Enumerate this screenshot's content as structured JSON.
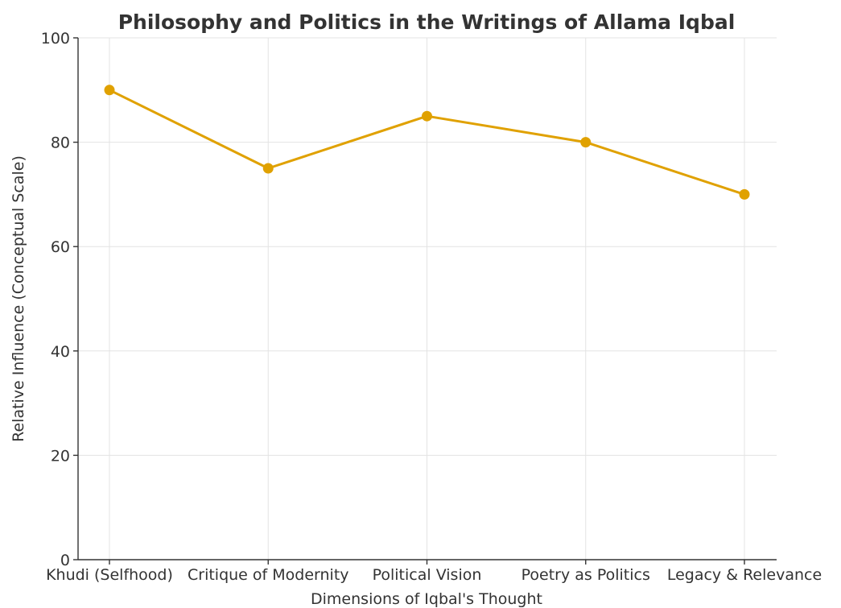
{
  "chart_data": {
    "type": "line",
    "title": "Philosophy and Politics in the Writings of Allama Iqbal",
    "xlabel": "Dimensions of Iqbal's Thought",
    "ylabel": "Relative Influence (Conceptual Scale)",
    "categories": [
      "Khudi (Selfhood)",
      "Critique of Modernity",
      "Political Vision",
      "Poetry as Politics",
      "Legacy & Relevance"
    ],
    "series": [
      {
        "values": [
          90,
          75,
          85,
          80,
          70
        ],
        "color": "#e0a100"
      }
    ],
    "ylim": [
      0,
      100
    ],
    "yticks": [
      0,
      20,
      40,
      60,
      80,
      100
    ],
    "ytick_labels": [
      "0",
      "20",
      "40",
      "60",
      "80",
      "100"
    ],
    "grid": true,
    "marker": "circle"
  }
}
